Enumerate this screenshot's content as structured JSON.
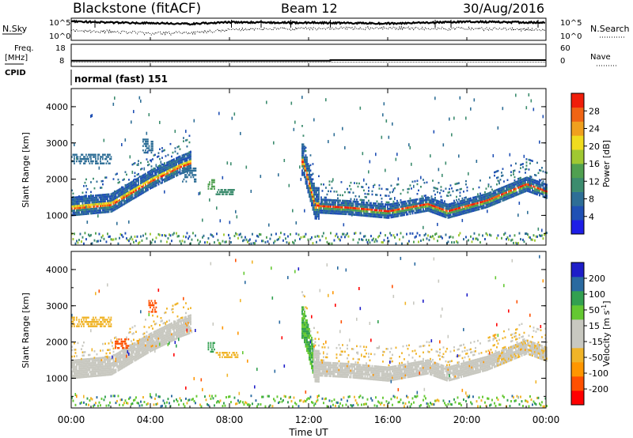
{
  "header": {
    "station": "Blackstone (fitACF)",
    "beam": "Beam 12",
    "date": "30/Aug/2016"
  },
  "status_panels": {
    "nsky_label": "N.Sky",
    "nsearch_label": "N.Search",
    "freq_label_1": "Freq.",
    "freq_label_2": "[MHz]",
    "nave_label": "Nave",
    "cpid_label": "CPID",
    "noise_ticks_left": [
      "10^5",
      "10^0"
    ],
    "noise_ticks_right": [
      "10^5",
      "10^0"
    ],
    "freq_ticks": [
      "18",
      "8"
    ],
    "nave_ticks": [
      "60",
      "0"
    ],
    "cpid_text": "normal (fast) 151"
  },
  "colors": {
    "power_scale": [
      "#1e1ee6",
      "#2050b4",
      "#2e6e96",
      "#3c8c6e",
      "#50a050",
      "#a0c832",
      "#f0dc1e",
      "#f0a01e",
      "#f06414",
      "#f01e0a"
    ],
    "velocity_scale": [
      "#ff0000",
      "#ff5000",
      "#ff9600",
      "#f0b428",
      "#c8c8c0",
      "#c8c8c0",
      "#64c832",
      "#32a050",
      "#2a6aa0",
      "#1e1ec8"
    ],
    "ground_scatter": "#c8c8c0"
  },
  "chart_data": [
    {
      "type": "heatmap",
      "panel": "power",
      "xlabel": "Time UT",
      "ylabel": "Slant Range [km]",
      "x_ticks": [
        "00:00",
        "04:00",
        "08:00",
        "12:00",
        "16:00",
        "20:00",
        "00:00"
      ],
      "y_ticks": [
        "1000",
        "2000",
        "3000",
        "4000"
      ],
      "xlim": [
        0,
        24
      ],
      "ylim": [
        180,
        4500
      ],
      "colorbar_label": "Power [dB]",
      "colorbar_ticks": [
        "4",
        "8",
        "12",
        "16",
        "20",
        "24",
        "28"
      ],
      "colorbar_range": [
        0,
        30
      ],
      "main_band": {
        "time_h": [
          0,
          2,
          4,
          5.5,
          6,
          11.7,
          12.3,
          14,
          16,
          18,
          19,
          21,
          23,
          24
        ],
        "range_km": [
          1150,
          1250,
          1900,
          2300,
          2400,
          2400,
          1200,
          1150,
          1050,
          1250,
          1050,
          1350,
          1800,
          1600
        ]
      }
    },
    {
      "type": "heatmap",
      "panel": "velocity",
      "xlabel": "Time UT",
      "ylabel": "Slant Range [km]",
      "x_ticks": [
        "00:00",
        "04:00",
        "08:00",
        "12:00",
        "16:00",
        "20:00",
        "00:00"
      ],
      "y_ticks": [
        "1000",
        "2000",
        "3000",
        "4000"
      ],
      "xlim": [
        0,
        24
      ],
      "ylim": [
        180,
        4500
      ],
      "colorbar_label": "Velocity [m s^-1]",
      "colorbar_ticks": [
        "-200",
        "-100",
        "-50",
        "-15",
        "15",
        "50",
        "100",
        "200"
      ],
      "colorbar_range": [
        -250,
        250
      ]
    }
  ],
  "noise": {
    "sky_level": [
      0.86,
      0.8,
      0.78,
      0.74,
      0.82,
      0.8,
      0.8,
      0.78,
      0.76,
      0.8,
      0.84,
      0.82,
      0.8
    ],
    "search_level": [
      0.42,
      0.4,
      0.3,
      0.34,
      0.48,
      0.52,
      0.52,
      0.55,
      0.55,
      0.53,
      0.52,
      0.5,
      0.48
    ]
  },
  "freq": {
    "step_time_h": 13.1,
    "before": 10.2,
    "after": 10.5
  }
}
